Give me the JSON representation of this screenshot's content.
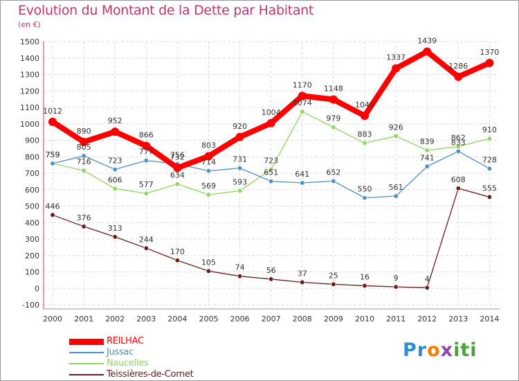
{
  "title": "Evolution du Montant de la Dette par Habitant",
  "unit_label": "(en €)",
  "logo_text": "Proxiti",
  "chart_data": {
    "type": "line",
    "title": "Evolution du Montant de la Dette par Habitant",
    "subtitle": "(en €)",
    "x": [
      "2000",
      "2001",
      "2002",
      "2003",
      "2004",
      "2005",
      "2006",
      "2007",
      "2008",
      "2009",
      "2010",
      "2011",
      "2012",
      "2013",
      "2014"
    ],
    "ylim": [
      -100,
      1500
    ],
    "yticks": [
      -100,
      0,
      100,
      200,
      300,
      400,
      500,
      600,
      700,
      800,
      900,
      1000,
      1100,
      1200,
      1300,
      1400,
      1500
    ],
    "grid": true,
    "legend": "bottom-left",
    "series": [
      {
        "name": "REILHAC",
        "color": "#ff0000",
        "values": [
          1012,
          890,
          952,
          866,
          732,
          803,
          920,
          1004,
          1170,
          1148,
          1049,
          1337,
          1439,
          1286,
          1370
        ]
      },
      {
        "name": "Jussac",
        "color": "#4a90c8",
        "values": [
          759,
          805,
          723,
          777,
          756,
          714,
          731,
          651,
          641,
          652,
          550,
          561,
          741,
          833,
          728
        ]
      },
      {
        "name": "Naucelles",
        "color": "#8ed65e",
        "values": [
          759,
          716,
          606,
          577,
          634,
          569,
          593,
          723,
          1074,
          979,
          883,
          926,
          839,
          862,
          910
        ]
      },
      {
        "name": "Teissières-de-Cornet",
        "color": "#6b1a1a",
        "values": [
          446,
          376,
          313,
          244,
          170,
          105,
          74,
          56,
          37,
          25,
          16,
          9,
          4,
          608,
          555
        ]
      }
    ]
  }
}
